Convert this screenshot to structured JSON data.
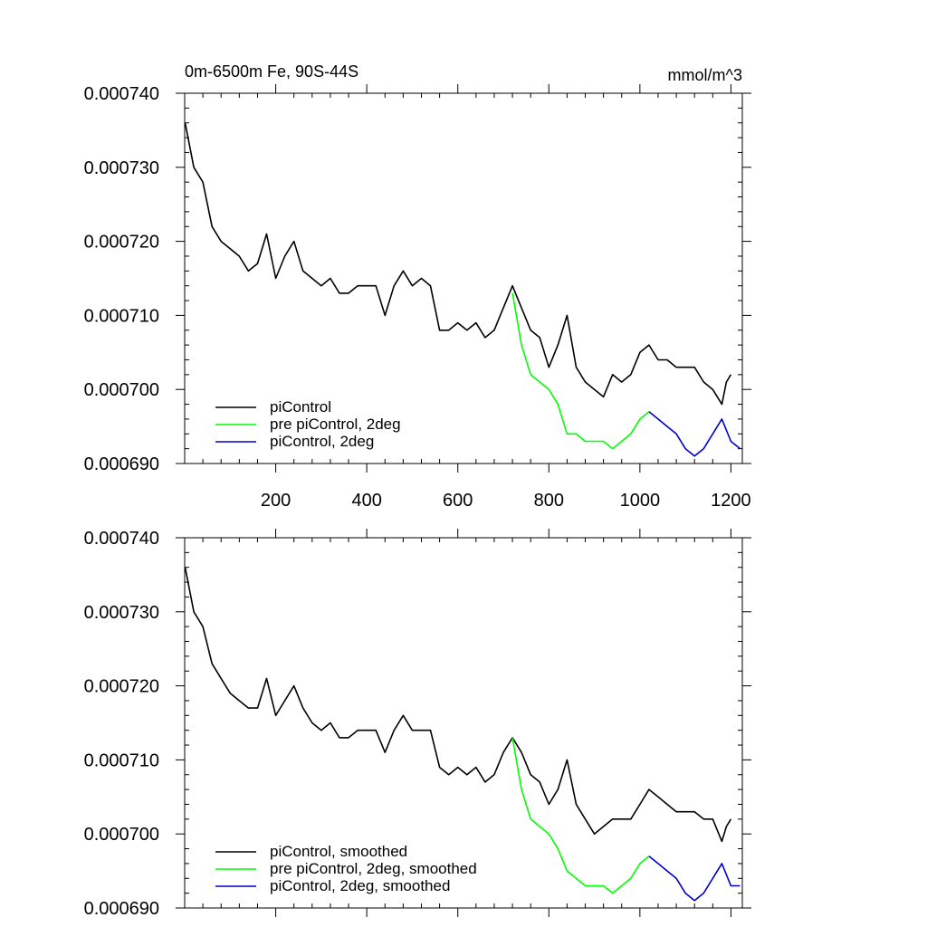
{
  "chart_data": [
    {
      "type": "line",
      "title": "0m-6500m Fe, 90S-44S",
      "units": "mmol/m^3",
      "xlim": [
        0,
        1225
      ],
      "ylim": [
        0.00069,
        0.00074
      ],
      "xticks": [
        200,
        400,
        600,
        800,
        1000,
        1200
      ],
      "xtick_labels": [
        "200",
        "400",
        "600",
        "800",
        "1000",
        "1200"
      ],
      "yticks": [
        0.00069,
        0.0007,
        0.00071,
        0.00072,
        0.00073,
        0.00074
      ],
      "ytick_labels": [
        "0.000690",
        "0.000700",
        "0.000710",
        "0.000720",
        "0.000730",
        "0.000740"
      ],
      "legend_position": "bottom-left",
      "series": [
        {
          "name": "piControl",
          "color": "#000000",
          "x": [
            1,
            20,
            40,
            60,
            80,
            100,
            120,
            140,
            160,
            180,
            200,
            220,
            240,
            260,
            280,
            300,
            320,
            340,
            360,
            380,
            400,
            420,
            440,
            460,
            480,
            500,
            520,
            540,
            560,
            580,
            600,
            620,
            640,
            660,
            680,
            700,
            720,
            740,
            760,
            780,
            800,
            820,
            840,
            860,
            880,
            900,
            920,
            940,
            960,
            980,
            1000,
            1020,
            1040,
            1060,
            1080,
            1100,
            1120,
            1140,
            1160,
            1180,
            1190,
            1200
          ],
          "y": [
            0.000736,
            0.00073,
            0.000728,
            0.000722,
            0.00072,
            0.000719,
            0.000718,
            0.000716,
            0.000717,
            0.000721,
            0.000715,
            0.000718,
            0.00072,
            0.000716,
            0.000715,
            0.000714,
            0.000715,
            0.000713,
            0.000713,
            0.000714,
            0.000714,
            0.000714,
            0.00071,
            0.000714,
            0.000716,
            0.000714,
            0.000715,
            0.000714,
            0.000708,
            0.000708,
            0.000709,
            0.000708,
            0.000709,
            0.000707,
            0.000708,
            0.000711,
            0.000714,
            0.000711,
            0.000708,
            0.000707,
            0.000703,
            0.000706,
            0.00071,
            0.000703,
            0.000701,
            0.0007,
            0.000699,
            0.000702,
            0.000701,
            0.000702,
            0.000705,
            0.000706,
            0.000704,
            0.000704,
            0.000703,
            0.000703,
            0.000703,
            0.000701,
            0.0007,
            0.000698,
            0.000701,
            0.000702
          ]
        },
        {
          "name": "pre piControl, 2deg",
          "color": "#00ff00",
          "x": [
            720,
            740,
            760,
            780,
            800,
            820,
            840,
            860,
            880,
            900,
            920,
            940,
            960,
            980,
            1000,
            1020
          ],
          "y": [
            0.000713,
            0.000706,
            0.000702,
            0.000701,
            0.0007,
            0.000698,
            0.000694,
            0.000694,
            0.000693,
            0.000693,
            0.000693,
            0.000692,
            0.000693,
            0.000694,
            0.000696,
            0.000697
          ]
        },
        {
          "name": "piControl, 2deg",
          "color": "#0000cc",
          "x": [
            1020,
            1040,
            1060,
            1080,
            1100,
            1120,
            1140,
            1160,
            1180,
            1200,
            1220
          ],
          "y": [
            0.000697,
            0.000696,
            0.000695,
            0.000694,
            0.000692,
            0.000691,
            0.000692,
            0.000694,
            0.000696,
            0.000693,
            0.000692
          ]
        }
      ]
    },
    {
      "type": "line",
      "title": "",
      "units": "",
      "xlim": [
        0,
        1225
      ],
      "ylim": [
        0.00069,
        0.00074
      ],
      "xticks": [
        200,
        400,
        600,
        800,
        1000,
        1200
      ],
      "xtick_labels": [
        "",
        "",
        "",
        "",
        "",
        ""
      ],
      "yticks": [
        0.00069,
        0.0007,
        0.00071,
        0.00072,
        0.00073,
        0.00074
      ],
      "ytick_labels": [
        "0.000690",
        "0.000700",
        "0.000710",
        "0.000720",
        "0.000730",
        "0.000740"
      ],
      "legend_position": "bottom-left",
      "series": [
        {
          "name": "piControl, smoothed",
          "color": "#000000",
          "x": [
            1,
            20,
            40,
            60,
            80,
            100,
            120,
            140,
            160,
            180,
            200,
            220,
            240,
            260,
            280,
            300,
            320,
            340,
            360,
            380,
            400,
            420,
            440,
            460,
            480,
            500,
            520,
            540,
            560,
            580,
            600,
            620,
            640,
            660,
            680,
            700,
            720,
            740,
            760,
            780,
            800,
            820,
            840,
            860,
            880,
            900,
            920,
            940,
            960,
            980,
            1000,
            1020,
            1040,
            1060,
            1080,
            1100,
            1120,
            1140,
            1160,
            1180,
            1190,
            1200
          ],
          "y": [
            0.000736,
            0.00073,
            0.000728,
            0.000723,
            0.000721,
            0.000719,
            0.000718,
            0.000717,
            0.000717,
            0.000721,
            0.000716,
            0.000718,
            0.00072,
            0.000717,
            0.000715,
            0.000714,
            0.000715,
            0.000713,
            0.000713,
            0.000714,
            0.000714,
            0.000714,
            0.000711,
            0.000714,
            0.000716,
            0.000714,
            0.000714,
            0.000714,
            0.000709,
            0.000708,
            0.000709,
            0.000708,
            0.000709,
            0.000707,
            0.000708,
            0.000711,
            0.000713,
            0.000711,
            0.000708,
            0.000707,
            0.000704,
            0.000706,
            0.00071,
            0.000704,
            0.000702,
            0.0007,
            0.000701,
            0.000702,
            0.000702,
            0.000702,
            0.000704,
            0.000706,
            0.000705,
            0.000704,
            0.000703,
            0.000703,
            0.000703,
            0.000702,
            0.000702,
            0.000699,
            0.000701,
            0.000702
          ]
        },
        {
          "name": "pre piControl, 2deg, smoothed",
          "color": "#00ff00",
          "x": [
            720,
            740,
            760,
            780,
            800,
            820,
            840,
            860,
            880,
            900,
            920,
            940,
            960,
            980,
            1000,
            1020
          ],
          "y": [
            0.000713,
            0.000706,
            0.000702,
            0.000701,
            0.0007,
            0.000698,
            0.000695,
            0.000694,
            0.000693,
            0.000693,
            0.000693,
            0.000692,
            0.000693,
            0.000694,
            0.000696,
            0.000697
          ]
        },
        {
          "name": "piControl, 2deg, smoothed",
          "color": "#0000cc",
          "x": [
            1020,
            1040,
            1060,
            1080,
            1100,
            1120,
            1140,
            1160,
            1180,
            1200,
            1220
          ],
          "y": [
            0.000697,
            0.000696,
            0.000695,
            0.000694,
            0.000692,
            0.000691,
            0.000692,
            0.000694,
            0.000696,
            0.000693,
            0.000693
          ]
        }
      ]
    }
  ]
}
